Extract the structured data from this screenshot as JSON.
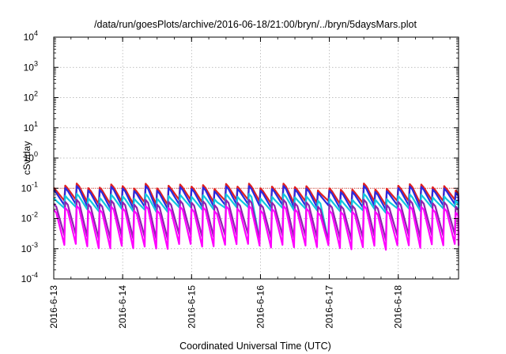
{
  "chart_data": {
    "type": "line",
    "title": "/data/run/goesPlots/archive/2016-06-18/21:00/bryn/../bryn/5daysMars.plot",
    "xlabel": "Coordinated Universal Time (UTC)",
    "ylabel": "cSv/day",
    "x_scale": "time",
    "xlim": [
      "2016-06-13T00:00",
      "2016-06-18T21:00"
    ],
    "x_ticks": [
      "2016-6-13",
      "2016-6-14",
      "2016-6-15",
      "2016-6-16",
      "2016-6-17",
      "2016-6-18"
    ],
    "y_scale": "log",
    "ylim": [
      0.0001,
      10000
    ],
    "y_ticks": [
      {
        "base": "10",
        "exp": "-4",
        "value": 0.0001
      },
      {
        "base": "10",
        "exp": "-3",
        "value": 0.001
      },
      {
        "base": "10",
        "exp": "-2",
        "value": 0.01
      },
      {
        "base": "10",
        "exp": "-1",
        "value": 0.1
      },
      {
        "base": "10",
        "exp": "0",
        "value": 1
      },
      {
        "base": "10",
        "exp": "1",
        "value": 10
      },
      {
        "base": "10",
        "exp": "2",
        "value": 100
      },
      {
        "base": "10",
        "exp": "3",
        "value": 1000
      },
      {
        "base": "10",
        "exp": "4",
        "value": 10000
      }
    ],
    "grid": true,
    "threshold_line": {
      "value": 0.1,
      "color": "#e03020",
      "style": "dotted"
    },
    "colors": {
      "red": "#e02020",
      "blue": "#2a2ae0",
      "cyan": "#10c8e0",
      "purple": "#9020b0",
      "magenta": "#ff00ff",
      "grid": "#aaaaaa"
    },
    "pattern": {
      "cycle_hours": 4,
      "peak_range": [
        0.05,
        0.12
      ],
      "trough_range": [
        0.001,
        0.003
      ],
      "dips": [
        {
          "x": "2016-06-15T22:00",
          "value": 0.002
        },
        {
          "x": "2016-06-16T22:00",
          "value": 0.0018
        }
      ]
    },
    "series": [
      {
        "color_key": "red",
        "peak": 0.12,
        "trough": 0.035
      },
      {
        "color_key": "blue",
        "peak": 0.1,
        "trough": 0.025
      },
      {
        "color_key": "cyan",
        "peak": 0.055,
        "trough": 0.02
      },
      {
        "color_key": "purple",
        "peak": 0.035,
        "trough": 0.0025
      },
      {
        "color_key": "magenta",
        "peak": 0.022,
        "trough": 0.0012
      }
    ]
  }
}
